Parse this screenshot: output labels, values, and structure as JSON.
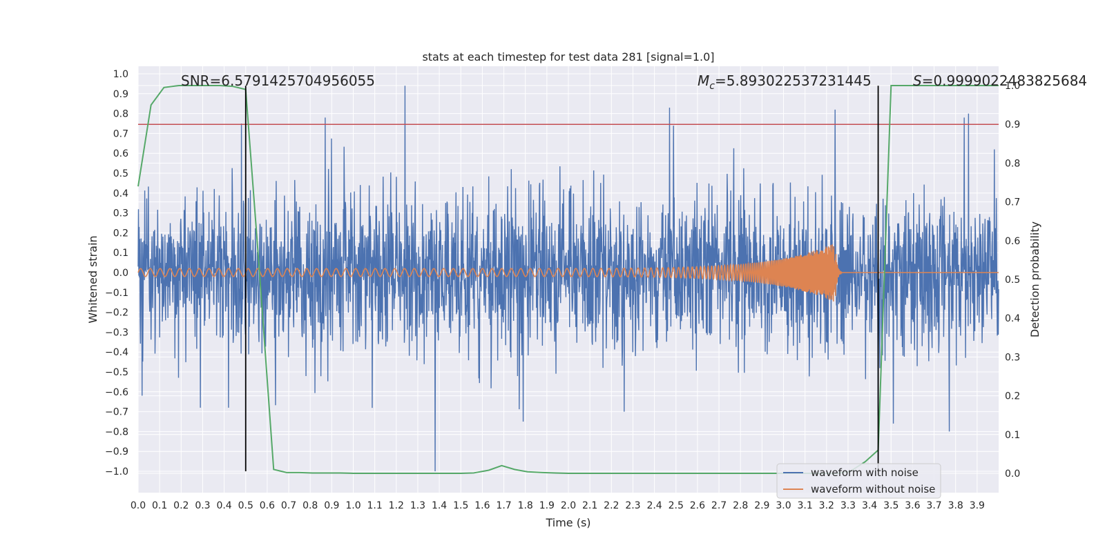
{
  "chart_data": {
    "type": "line",
    "title": "stats at each timestep for test data 281 [signal=1.0]",
    "xlabel": "Time (s)",
    "ylabel": "Whitened strain",
    "y2label": "Detection probability",
    "xlim": [
      0.0,
      4.0
    ],
    "ylim": [
      -1.1,
      1.04
    ],
    "y2lim": [
      -0.05,
      1.03
    ],
    "grid": true,
    "legend_position": "bottom-right",
    "x_ticks": [
      "0.0",
      "0.1",
      "0.2",
      "0.3",
      "0.4",
      "0.5",
      "0.6",
      "0.7",
      "0.8",
      "0.9",
      "1.0",
      "1.1",
      "1.2",
      "1.3",
      "1.4",
      "1.5",
      "1.6",
      "1.7",
      "1.8",
      "1.9",
      "2.0",
      "2.1",
      "2.2",
      "2.3",
      "2.4",
      "2.5",
      "2.6",
      "2.7",
      "2.8",
      "2.9",
      "3.0",
      "3.1",
      "3.2",
      "3.3",
      "3.4",
      "3.5",
      "3.6",
      "3.7",
      "3.8",
      "3.9"
    ],
    "y_ticks": [
      "1.0",
      "0.9",
      "0.8",
      "0.7",
      "0.6",
      "0.5",
      "0.4",
      "0.3",
      "0.2",
      "0.1",
      "0.0",
      "−0.1",
      "−0.2",
      "−0.3",
      "−0.4",
      "−0.5",
      "−0.6",
      "−0.7",
      "−0.8",
      "−0.9",
      "−1.0"
    ],
    "y2_ticks": [
      "1.0",
      "0.9",
      "0.8",
      "0.7",
      "0.6",
      "0.5",
      "0.4",
      "0.3",
      "0.2",
      "0.1",
      "0.0"
    ],
    "annotations": {
      "snr": "SNR=6.5791425704956055",
      "mc_symbol": "M",
      "mc_sub": "c",
      "mc_value": "=5.893022537231445",
      "s_symbol": "S",
      "s_value": "=0.9999022483825684"
    },
    "markers": {
      "threshold_probability": 0.9,
      "vertical_lines_x": [
        0.5,
        3.44
      ],
      "vertical_line_y_range": [
        -1.0,
        0.94
      ]
    },
    "series": [
      {
        "name": "waveform with noise",
        "color": "#4c72b0",
        "noise_std": 0.2,
        "extremes": [
          {
            "x": 0.48,
            "y": 0.75
          },
          {
            "x": 0.87,
            "y": 0.78
          },
          {
            "x": 1.24,
            "y": 0.94
          },
          {
            "x": 2.47,
            "y": 0.83
          },
          {
            "x": 3.24,
            "y": 0.82
          },
          {
            "x": 3.86,
            "y": 0.8
          },
          {
            "x": 3.84,
            "y": 0.78
          },
          {
            "x": 3.98,
            "y": 0.62
          },
          {
            "x": 1.38,
            "y": -1.0
          },
          {
            "x": 3.84,
            "y": -0.92
          },
          {
            "x": 3.77,
            "y": -0.8
          },
          {
            "x": 0.42,
            "y": -0.68
          },
          {
            "x": 0.29,
            "y": -0.68
          },
          {
            "x": 2.26,
            "y": -0.7
          },
          {
            "x": 3.44,
            "y": -0.72
          },
          {
            "x": 1.79,
            "y": -0.75
          },
          {
            "x": 3.51,
            "y": -0.76
          }
        ]
      },
      {
        "name": "waveform without noise",
        "color": "#dd8452",
        "chirp": {
          "start": 0.0,
          "merger": 3.24,
          "amp_start": 0.02,
          "amp_peak": 0.15,
          "freq_start": 22,
          "freq_end": 300
        }
      },
      {
        "name": "",
        "color": "#55a868",
        "axis": "secondary",
        "x": [
          0.0,
          0.06,
          0.12,
          0.19,
          0.25,
          0.31,
          0.38,
          0.44,
          0.5,
          0.56,
          0.63,
          0.69,
          0.75,
          0.81,
          0.88,
          0.94,
          1.0,
          1.06,
          1.13,
          1.19,
          1.25,
          1.31,
          1.38,
          1.44,
          1.5,
          1.56,
          1.63,
          1.69,
          1.75,
          1.81,
          1.88,
          1.94,
          2.0,
          2.06,
          2.13,
          2.19,
          2.25,
          2.31,
          2.38,
          2.44,
          2.5,
          2.56,
          2.63,
          2.69,
          2.75,
          2.81,
          2.88,
          2.94,
          3.0,
          3.06,
          3.13,
          3.19,
          3.25,
          3.31,
          3.38,
          3.44,
          3.5,
          3.56,
          3.63,
          3.69,
          3.75,
          3.81,
          3.88,
          3.94,
          4.0
        ],
        "y": [
          0.74,
          0.95,
          0.995,
          1.0,
          1.0,
          1.0,
          1.0,
          0.998,
          0.99,
          0.55,
          0.01,
          0.002,
          0.002,
          0.001,
          0.001,
          0.001,
          0.0,
          0.0,
          0.0,
          0.0,
          0.0,
          0.0,
          0.0,
          0.0,
          0.0,
          0.001,
          0.008,
          0.02,
          0.01,
          0.004,
          0.002,
          0.001,
          0.0,
          0.0,
          0.0,
          0.0,
          0.0,
          0.0,
          0.0,
          0.0,
          0.0,
          0.0,
          0.0,
          0.0,
          0.0,
          0.0,
          0.0,
          0.0,
          0.0,
          0.0,
          0.0,
          0.0,
          0.0,
          0.005,
          0.03,
          0.06,
          1.0,
          1.0,
          1.0,
          1.0,
          1.0,
          1.0,
          1.0,
          1.0,
          1.0
        ]
      },
      {
        "name": "",
        "color": "#c44e52",
        "axis": "secondary",
        "x": [
          0.0,
          4.0
        ],
        "y": [
          0.9,
          0.9
        ]
      }
    ]
  }
}
